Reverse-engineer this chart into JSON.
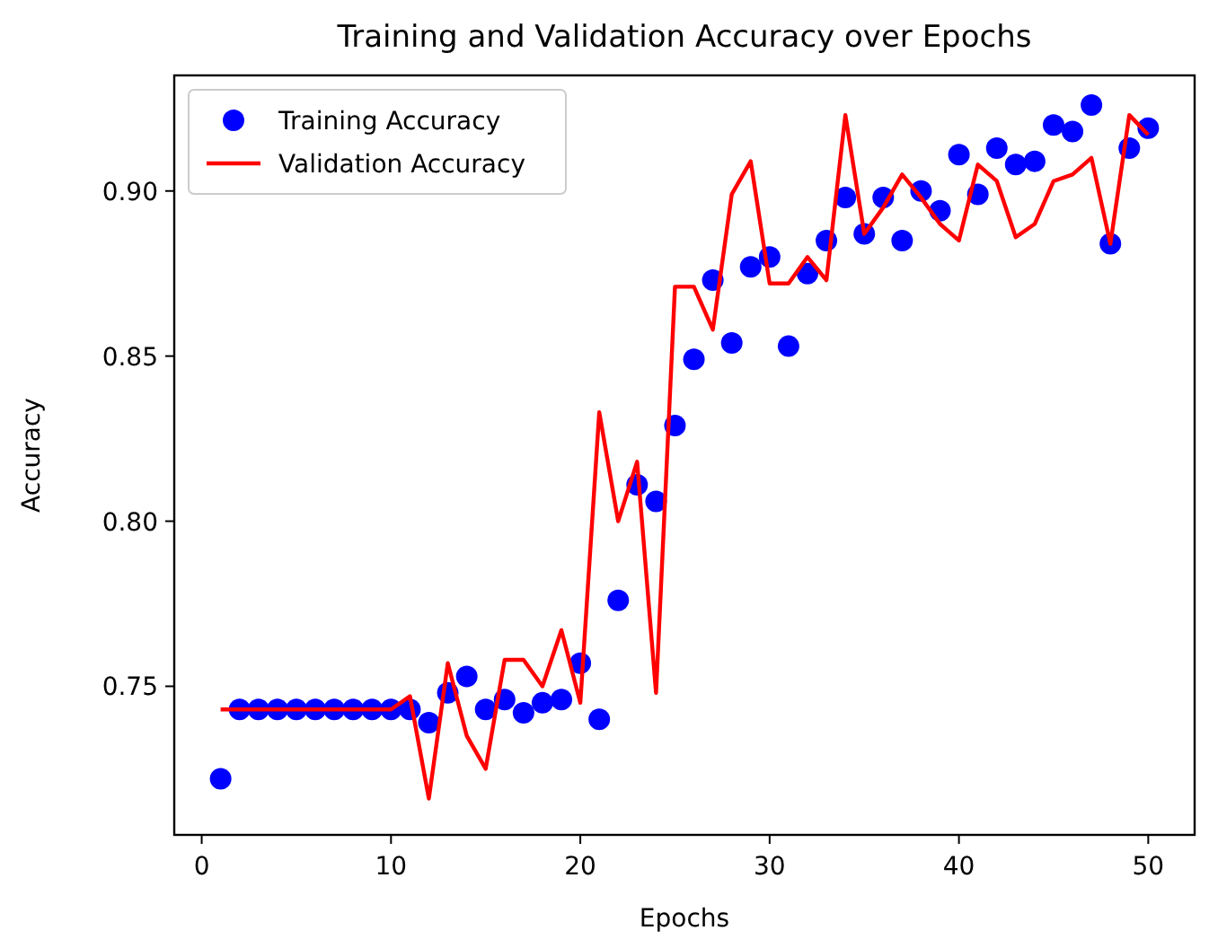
{
  "chart_data": {
    "type": "scatter",
    "title": "Training and Validation Accuracy over Epochs",
    "xlabel": "Epochs",
    "ylabel": "Accuracy",
    "x": [
      1,
      2,
      3,
      4,
      5,
      6,
      7,
      8,
      9,
      10,
      11,
      12,
      13,
      14,
      15,
      16,
      17,
      18,
      19,
      20,
      21,
      22,
      23,
      24,
      25,
      26,
      27,
      28,
      29,
      30,
      31,
      32,
      33,
      34,
      35,
      36,
      37,
      38,
      39,
      40,
      41,
      42,
      43,
      44,
      45,
      46,
      47,
      48,
      49,
      50
    ],
    "series": [
      {
        "name": "Training Accuracy",
        "color": "#0000ff",
        "marker": "circle",
        "values": [
          0.722,
          0.743,
          0.743,
          0.743,
          0.743,
          0.743,
          0.743,
          0.743,
          0.743,
          0.743,
          0.743,
          0.739,
          0.748,
          0.753,
          0.743,
          0.746,
          0.742,
          0.745,
          0.746,
          0.757,
          0.74,
          0.776,
          0.811,
          0.806,
          0.829,
          0.849,
          0.873,
          0.854,
          0.877,
          0.88,
          0.853,
          0.875,
          0.885,
          0.898,
          0.887,
          0.898,
          0.885,
          0.9,
          0.894,
          0.911,
          0.899,
          0.913,
          0.908,
          0.909,
          0.92,
          0.918,
          0.926,
          0.884,
          0.913,
          0.919
        ]
      },
      {
        "name": "Validation Accuracy",
        "type": "line",
        "color": "#ff0000",
        "line_style": "solid",
        "values": [
          0.743,
          0.743,
          0.743,
          0.743,
          0.743,
          0.743,
          0.743,
          0.743,
          0.743,
          0.743,
          0.747,
          0.716,
          0.757,
          0.735,
          0.725,
          0.758,
          0.758,
          0.75,
          0.767,
          0.745,
          0.833,
          0.8,
          0.818,
          0.748,
          0.871,
          0.871,
          0.858,
          0.899,
          0.909,
          0.872,
          0.872,
          0.88,
          0.873,
          0.923,
          0.887,
          0.895,
          0.905,
          0.898,
          0.89,
          0.885,
          0.908,
          0.903,
          0.886,
          0.89,
          0.903,
          0.905,
          0.91,
          0.884,
          0.923,
          0.917
        ]
      }
    ],
    "xlim": [
      -1.45,
      52.45
    ],
    "ylim": [
      0.705,
      0.935
    ],
    "xticks": [
      0,
      10,
      20,
      30,
      40,
      50
    ],
    "yticks": [
      {
        "value": 0.75,
        "label": "0.75"
      },
      {
        "value": 0.8,
        "label": "0.80"
      },
      {
        "value": 0.85,
        "label": "0.85"
      },
      {
        "value": 0.9,
        "label": "0.90"
      }
    ],
    "grid": false,
    "legend": "top left"
  }
}
